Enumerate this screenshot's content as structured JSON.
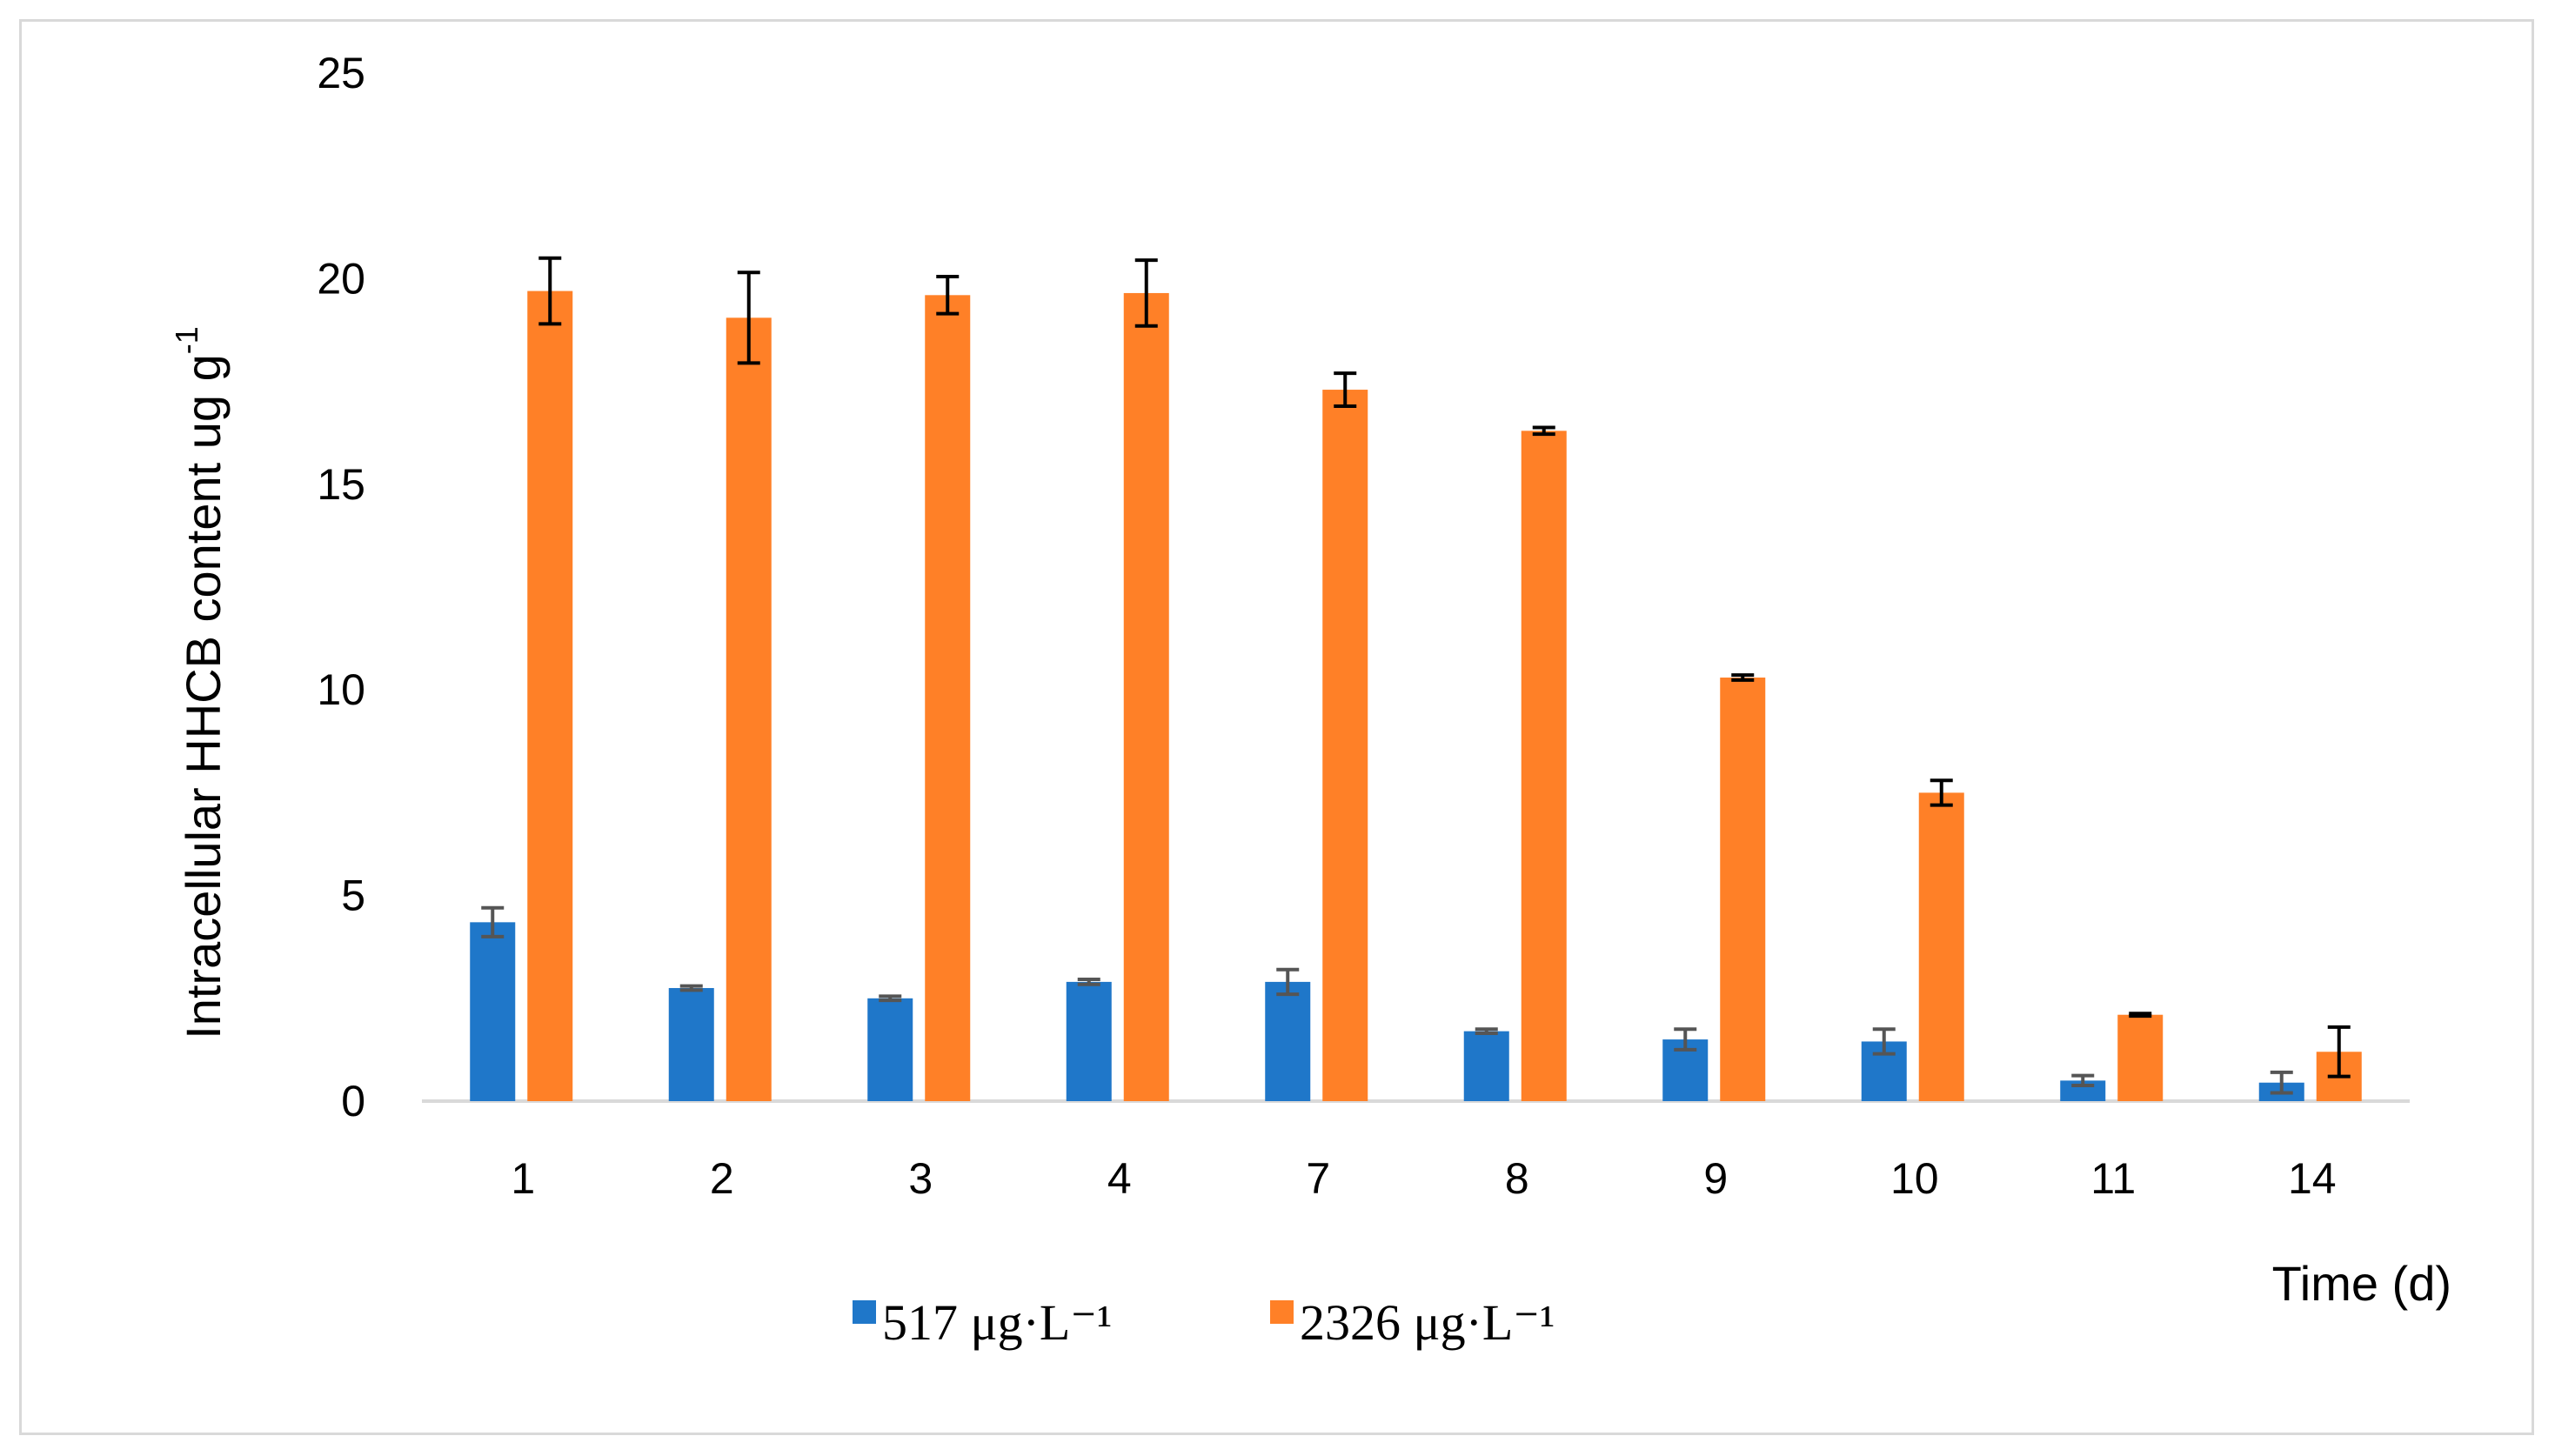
{
  "chart_data": {
    "type": "bar",
    "title": "",
    "xlabel": "Time (d)",
    "ylabel": "Intracellular HHCB content ug g",
    "ylabel_superscript": "-1",
    "ylim": [
      0,
      25
    ],
    "yticks": [
      0,
      5,
      10,
      15,
      20,
      25
    ],
    "grid": false,
    "legend_position": "bottom-left",
    "categories": [
      "1",
      "2",
      "3",
      "4",
      "7",
      "8",
      "9",
      "10",
      "11",
      "14"
    ],
    "series": [
      {
        "name": "517 μg·L⁻¹",
        "color": "#1f77c9",
        "values": [
          4.35,
          2.75,
          2.5,
          2.9,
          2.9,
          1.7,
          1.5,
          1.45,
          0.5,
          0.45
        ],
        "errors": [
          0.35,
          0.05,
          0.05,
          0.06,
          0.3,
          0.05,
          0.25,
          0.3,
          0.12,
          0.25
        ]
      },
      {
        "name": "2326 μg·L⁻¹",
        "color": "#ff8027",
        "values": [
          19.7,
          19.05,
          19.6,
          19.65,
          17.3,
          16.3,
          10.3,
          7.5,
          2.1,
          1.2
        ],
        "errors": [
          0.8,
          1.1,
          0.45,
          0.8,
          0.4,
          0.08,
          0.06,
          0.3,
          0.03,
          0.6
        ]
      }
    ]
  }
}
